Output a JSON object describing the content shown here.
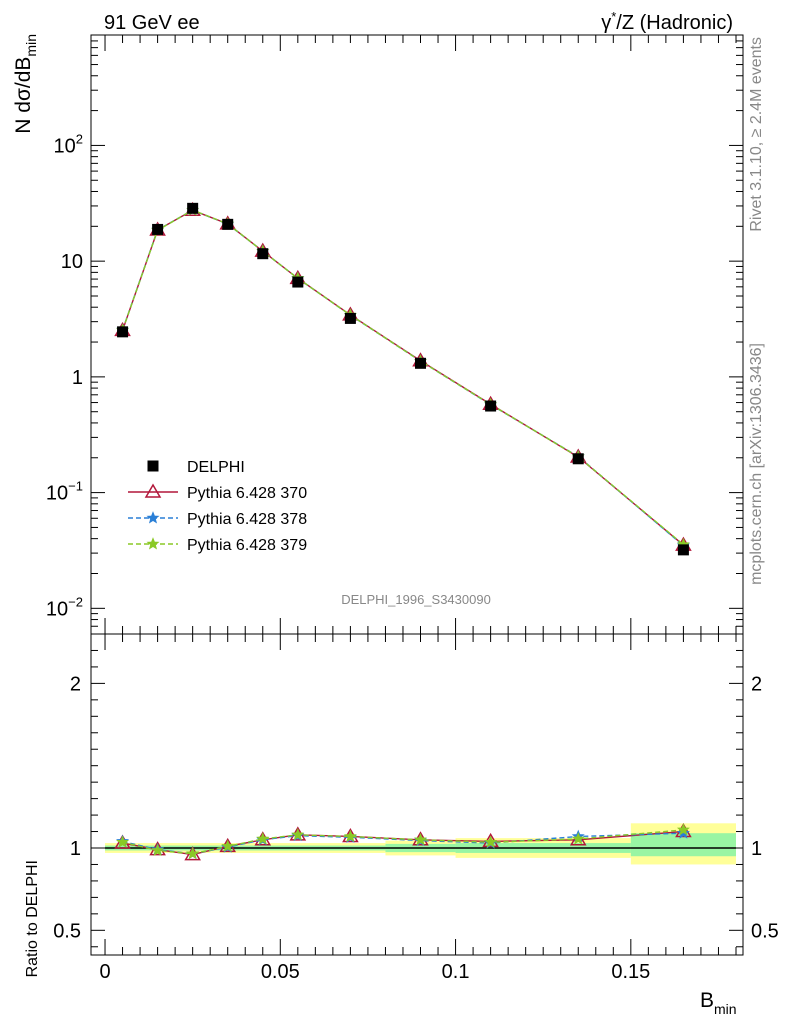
{
  "header": {
    "left": "91 GeV ee",
    "right_greek": "γ",
    "right_star": "*",
    "right_text": "/Z (Hadronic)"
  },
  "side_text": {
    "rivet": "Rivet 3.1.10, ≥ 2.4M events",
    "mcplots": "mcplots.cern.ch [arXiv:1306.3436]"
  },
  "analysis_label": "DELPHI_1996_S3430090",
  "colors": {
    "data": "#000000",
    "p370": "#b2173a",
    "p378": "#2a7fd6",
    "p379": "#8ac926",
    "band_inner": "#99f5a3",
    "band_outer": "#ffff99",
    "label_gray": "#888888"
  },
  "chart_data": [
    {
      "type": "line",
      "title": "",
      "ylabel_main": "N dσ/dB",
      "ylabel_sub": "min",
      "yscale": "log",
      "xlim": [
        -0.004,
        0.182
      ],
      "ylim": [
        0.006,
        900
      ],
      "yticks": [
        {
          "value": 0.01,
          "base": "10",
          "exp": "−2"
        },
        {
          "value": 0.1,
          "base": "10",
          "exp": "−1"
        },
        {
          "value": 1,
          "label": "1"
        },
        {
          "value": 10,
          "label": "10"
        },
        {
          "value": 100,
          "base": "10",
          "exp": "2"
        }
      ],
      "x": [
        0.005,
        0.015,
        0.025,
        0.035,
        0.045,
        0.055,
        0.07,
        0.09,
        0.11,
        0.135,
        0.165
      ],
      "series": [
        {
          "name": "DELPHI",
          "key": "data",
          "marker": "square",
          "values": [
            2.45,
            18.8,
            28.6,
            20.8,
            11.6,
            6.6,
            3.2,
            1.31,
            0.56,
            0.196,
            0.032
          ]
        },
        {
          "name": "Pythia 6.428 370",
          "key": "p370",
          "marker": "triangle",
          "values": [
            2.52,
            18.6,
            27.5,
            21.0,
            12.2,
            7.1,
            3.43,
            1.38,
            0.58,
            0.203,
            0.0352
          ]
        },
        {
          "name": "Pythia 6.428 378",
          "key": "p378",
          "marker": "star",
          "values": [
            2.54,
            18.6,
            27.6,
            20.9,
            12.2,
            7.1,
            3.41,
            1.37,
            0.575,
            0.205,
            0.0348
          ]
        },
        {
          "name": "Pythia 6.428 379",
          "key": "p379",
          "marker": "star",
          "values": [
            2.53,
            18.5,
            27.6,
            21.0,
            12.2,
            7.1,
            3.42,
            1.37,
            0.578,
            0.204,
            0.0355
          ]
        }
      ]
    },
    {
      "type": "line",
      "title": "",
      "ylabel": "Ratio to DELPHI",
      "xlabel_main": "B",
      "xlabel_sub": "min",
      "xlim": [
        -0.004,
        0.182
      ],
      "ylim": [
        0.35,
        2.3
      ],
      "xticks": [
        {
          "value": 0,
          "label": "0"
        },
        {
          "value": 0.05,
          "label": "0.05"
        },
        {
          "value": 0.1,
          "label": "0.1"
        },
        {
          "value": 0.15,
          "label": "0.15"
        }
      ],
      "yticks": [
        {
          "value": 0.5,
          "label": "0.5"
        },
        {
          "value": 1,
          "label": "1"
        },
        {
          "value": 2,
          "label": "2"
        }
      ],
      "bands": [
        {
          "x0": 0.0,
          "x1": 0.08,
          "inner": [
            0.985,
            1.015
          ],
          "outer": [
            0.97,
            1.03
          ]
        },
        {
          "x0": 0.08,
          "x1": 0.1,
          "inner": [
            0.975,
            1.025
          ],
          "outer": [
            0.955,
            1.045
          ]
        },
        {
          "x0": 0.1,
          "x1": 0.15,
          "inner": [
            0.97,
            1.03
          ],
          "outer": [
            0.94,
            1.06
          ]
        },
        {
          "x0": 0.15,
          "x1": 0.18,
          "inner": [
            0.95,
            1.09
          ],
          "outer": [
            0.9,
            1.15
          ]
        }
      ],
      "x": [
        0.005,
        0.015,
        0.025,
        0.035,
        0.045,
        0.055,
        0.07,
        0.09,
        0.11,
        0.135,
        0.165
      ],
      "series": [
        {
          "name": "Pythia 6.428 370",
          "key": "p370",
          "marker": "triangle",
          "values": [
            1.03,
            0.99,
            0.96,
            1.01,
            1.05,
            1.08,
            1.07,
            1.05,
            1.04,
            1.05,
            1.1
          ]
        },
        {
          "name": "Pythia 6.428 378",
          "key": "p378",
          "marker": "star",
          "values": [
            1.04,
            0.99,
            0.965,
            1.005,
            1.05,
            1.075,
            1.065,
            1.045,
            1.03,
            1.07,
            1.09
          ]
        },
        {
          "name": "Pythia 6.428 379",
          "key": "p379",
          "marker": "star",
          "values": [
            1.035,
            0.985,
            0.965,
            1.01,
            1.055,
            1.08,
            1.07,
            1.05,
            1.035,
            1.055,
            1.11
          ]
        }
      ]
    }
  ]
}
